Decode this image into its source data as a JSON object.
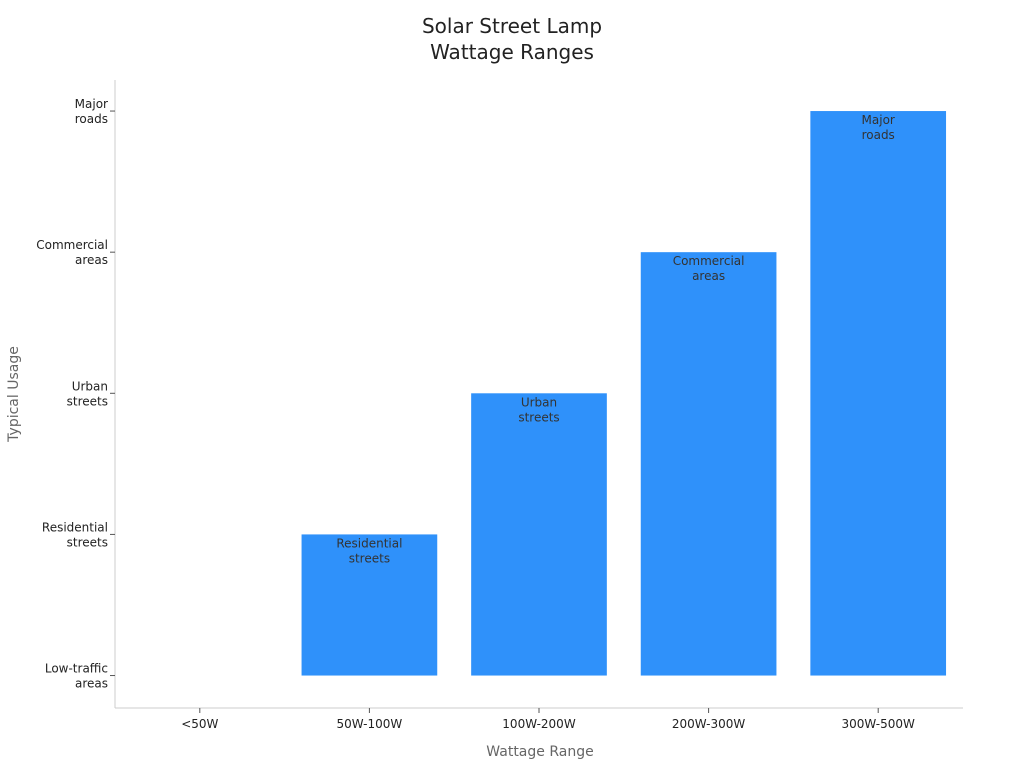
{
  "chart_data": {
    "type": "bar",
    "title": "Solar Street Lamp\nWattage Ranges",
    "x_label": "Wattage Range",
    "y_label": "Typical Usage",
    "categories": [
      "<50W",
      "50W-100W",
      "100W-200W",
      "200W-300W",
      "300W-500W"
    ],
    "values": [
      0,
      1,
      2,
      3,
      4
    ],
    "value_labels": [
      null,
      "Residential\nstreets",
      "Urban\nstreets",
      "Commercial\nareas",
      "Major\nroads"
    ],
    "color": "#2f91fa",
    "ylim": [
      -0.23,
      4.22
    ],
    "yticks": [
      {
        "value": 0,
        "label": "Low-traffic\nareas"
      },
      {
        "value": 1,
        "label": "Residential\nstreets"
      },
      {
        "value": 2,
        "label": "Urban\nstreets"
      },
      {
        "value": 3,
        "label": "Commercial\nareas"
      },
      {
        "value": 4,
        "label": "Major\nroads"
      }
    ],
    "grid": false
  }
}
